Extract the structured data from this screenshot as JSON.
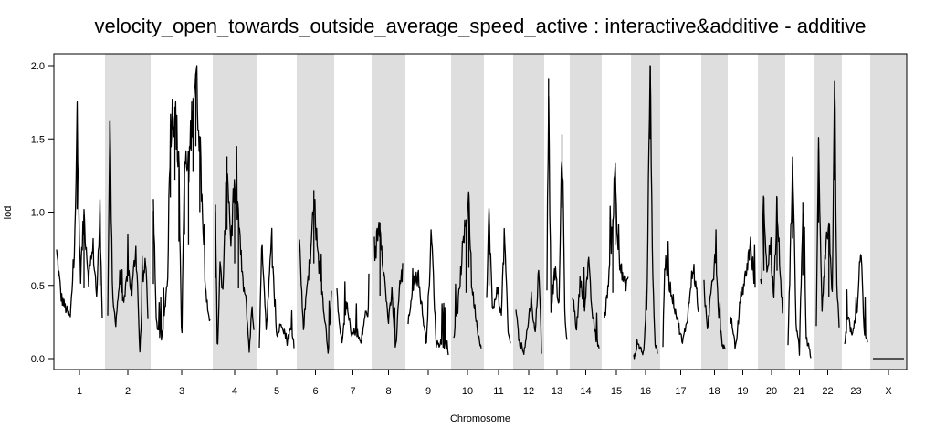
{
  "chart_data": {
    "type": "line",
    "title": "velocity_open_towards_outside_average_speed_active : interactive&additive - additive",
    "xlabel": "Chromosome",
    "ylabel": "lod",
    "ylim": [
      0.0,
      2.0
    ],
    "yticks": [
      "0.0",
      "0.5",
      "1.0",
      "1.5",
      "2.0"
    ],
    "grid": false,
    "chromosomes": [
      {
        "name": "1",
        "shaded": false,
        "peaks": [
          [
            0.0,
            0.72
          ],
          [
            0.1,
            0.42
          ],
          [
            0.2,
            0.34
          ],
          [
            0.3,
            0.28
          ],
          [
            0.38,
            0.7
          ],
          [
            0.45,
            1.52
          ],
          [
            0.52,
            0.55
          ],
          [
            0.6,
            0.98
          ],
          [
            0.7,
            0.55
          ],
          [
            0.8,
            0.75
          ],
          [
            0.88,
            0.42
          ],
          [
            0.95,
            1.0
          ],
          [
            1.0,
            0.3
          ]
        ]
      },
      {
        "name": "2",
        "shaded": true,
        "peaks": [
          [
            0.0,
            0.28
          ],
          [
            0.05,
            1.62
          ],
          [
            0.12,
            0.4
          ],
          [
            0.2,
            0.25
          ],
          [
            0.3,
            0.55
          ],
          [
            0.4,
            0.35
          ],
          [
            0.5,
            0.62
          ],
          [
            0.6,
            0.45
          ],
          [
            0.7,
            0.77
          ],
          [
            0.8,
            0.05
          ],
          [
            0.88,
            0.55
          ],
          [
            0.95,
            0.65
          ],
          [
            1.0,
            0.3
          ]
        ]
      },
      {
        "name": "3",
        "shaded": false,
        "peaks": [
          [
            0.0,
            1.01
          ],
          [
            0.05,
            0.25
          ],
          [
            0.15,
            0.12
          ],
          [
            0.25,
            0.55
          ],
          [
            0.3,
            1.6
          ],
          [
            0.38,
            1.72
          ],
          [
            0.45,
            1.3
          ],
          [
            0.5,
            0.08
          ],
          [
            0.55,
            1.35
          ],
          [
            0.62,
            1.28
          ],
          [
            0.7,
            1.78
          ],
          [
            0.75,
            1.95
          ],
          [
            0.82,
            1.5
          ],
          [
            0.9,
            0.65
          ],
          [
            0.96,
            0.3
          ],
          [
            1.0,
            0.25
          ]
        ]
      },
      {
        "name": "4",
        "shaded": true,
        "peaks": [
          [
            0.0,
            1.05
          ],
          [
            0.05,
            0.03
          ],
          [
            0.12,
            0.62
          ],
          [
            0.2,
            0.45
          ],
          [
            0.3,
            1.38
          ],
          [
            0.4,
            0.8
          ],
          [
            0.5,
            1.15
          ],
          [
            0.6,
            0.98
          ],
          [
            0.7,
            0.55
          ],
          [
            0.8,
            0.38
          ],
          [
            0.88,
            0.05
          ],
          [
            0.95,
            0.35
          ],
          [
            1.0,
            0.2
          ]
        ]
      },
      {
        "name": "5",
        "shaded": false,
        "peaks": [
          [
            0.0,
            0.1
          ],
          [
            0.08,
            0.81
          ],
          [
            0.2,
            0.2
          ],
          [
            0.35,
            0.77
          ],
          [
            0.5,
            0.15
          ],
          [
            0.65,
            0.25
          ],
          [
            0.8,
            0.12
          ],
          [
            0.9,
            0.2
          ],
          [
            1.0,
            0.1
          ]
        ]
      },
      {
        "name": "6",
        "shaded": true,
        "peaks": [
          [
            0.0,
            0.8
          ],
          [
            0.12,
            0.2
          ],
          [
            0.25,
            0.55
          ],
          [
            0.35,
            0.68
          ],
          [
            0.45,
            1.15
          ],
          [
            0.55,
            0.75
          ],
          [
            0.65,
            0.58
          ],
          [
            0.78,
            0.3
          ],
          [
            0.9,
            0.05
          ],
          [
            1.0,
            0.42
          ]
        ]
      },
      {
        "name": "7",
        "shaded": false,
        "peaks": [
          [
            0.0,
            0.44
          ],
          [
            0.15,
            0.1
          ],
          [
            0.3,
            0.38
          ],
          [
            0.45,
            0.15
          ],
          [
            0.6,
            0.2
          ],
          [
            0.75,
            0.1
          ],
          [
            0.88,
            0.3
          ],
          [
            1.0,
            0.32
          ]
        ]
      },
      {
        "name": "8",
        "shaded": true,
        "peaks": [
          [
            0.0,
            0.6
          ],
          [
            0.1,
            0.85
          ],
          [
            0.2,
            0.93
          ],
          [
            0.35,
            0.55
          ],
          [
            0.5,
            0.25
          ],
          [
            0.62,
            0.45
          ],
          [
            0.75,
            0.05
          ],
          [
            0.88,
            0.48
          ],
          [
            1.0,
            0.6
          ]
        ]
      },
      {
        "name": "9",
        "shaded": false,
        "peaks": [
          [
            0.0,
            0.25
          ],
          [
            0.1,
            0.45
          ],
          [
            0.2,
            0.6
          ],
          [
            0.3,
            0.45
          ],
          [
            0.45,
            0.1
          ],
          [
            0.58,
            0.85
          ],
          [
            0.7,
            0.1
          ],
          [
            0.85,
            0.12
          ],
          [
            1.0,
            0.05
          ]
        ]
      },
      {
        "name": "10",
        "shaded": true,
        "peaks": [
          [
            0.0,
            0.15
          ],
          [
            0.15,
            0.35
          ],
          [
            0.3,
            0.7
          ],
          [
            0.45,
            0.95
          ],
          [
            0.55,
            1.12
          ],
          [
            0.65,
            0.5
          ],
          [
            0.8,
            0.3
          ],
          [
            0.9,
            0.15
          ],
          [
            1.0,
            0.1
          ]
        ]
      },
      {
        "name": "11",
        "shaded": false,
        "peaks": [
          [
            0.0,
            0.4
          ],
          [
            0.1,
            1.0
          ],
          [
            0.25,
            0.3
          ],
          [
            0.45,
            0.5
          ],
          [
            0.6,
            0.25
          ],
          [
            0.75,
            0.85
          ],
          [
            0.9,
            0.18
          ],
          [
            1.0,
            0.1
          ]
        ]
      },
      {
        "name": "12",
        "shaded": true,
        "peaks": [
          [
            0.0,
            0.35
          ],
          [
            0.12,
            0.12
          ],
          [
            0.3,
            0.05
          ],
          [
            0.45,
            0.2
          ],
          [
            0.6,
            0.42
          ],
          [
            0.75,
            0.15
          ],
          [
            0.9,
            0.65
          ],
          [
            1.0,
            0.05
          ]
        ]
      },
      {
        "name": "13",
        "shaded": false,
        "peaks": [
          [
            0.0,
            0.25
          ],
          [
            0.08,
            1.91
          ],
          [
            0.2,
            0.35
          ],
          [
            0.4,
            0.6
          ],
          [
            0.6,
            0.35
          ],
          [
            0.75,
            1.53
          ],
          [
            0.9,
            0.25
          ],
          [
            1.0,
            0.1
          ]
        ]
      },
      {
        "name": "14",
        "shaded": true,
        "peaks": [
          [
            0.0,
            0.45
          ],
          [
            0.15,
            0.2
          ],
          [
            0.3,
            0.55
          ],
          [
            0.45,
            0.35
          ],
          [
            0.6,
            0.65
          ],
          [
            0.75,
            0.3
          ],
          [
            0.9,
            0.12
          ],
          [
            1.0,
            0.1
          ]
        ]
      },
      {
        "name": "15",
        "shaded": false,
        "peaks": [
          [
            0.0,
            0.25
          ],
          [
            0.2,
            0.6
          ],
          [
            0.35,
            0.95
          ],
          [
            0.45,
            1.28
          ],
          [
            0.55,
            0.8
          ],
          [
            0.7,
            0.6
          ],
          [
            0.85,
            0.5
          ],
          [
            1.0,
            0.55
          ]
        ]
      },
      {
        "name": "16",
        "shaded": true,
        "peaks": [
          [
            0.0,
            0.0
          ],
          [
            0.2,
            0.1
          ],
          [
            0.4,
            0.02
          ],
          [
            0.55,
            0.35
          ],
          [
            0.7,
            2.0
          ],
          [
            0.8,
            0.6
          ],
          [
            0.9,
            0.1
          ],
          [
            1.0,
            0.05
          ]
        ]
      },
      {
        "name": "17",
        "shaded": false,
        "peaks": [
          [
            0.0,
            0.09
          ],
          [
            0.05,
            0.67
          ],
          [
            0.15,
            0.55
          ],
          [
            0.45,
            0.22
          ],
          [
            0.55,
            0.1
          ],
          [
            0.7,
            0.3
          ],
          [
            0.85,
            0.65
          ],
          [
            1.0,
            0.3
          ]
        ]
      },
      {
        "name": "18",
        "shaded": true,
        "peaks": [
          [
            0.0,
            0.5
          ],
          [
            0.15,
            0.2
          ],
          [
            0.3,
            0.4
          ],
          [
            0.45,
            0.55
          ],
          [
            0.55,
            0.74
          ],
          [
            0.7,
            0.3
          ],
          [
            0.85,
            0.12
          ],
          [
            1.0,
            0.05
          ]
        ]
      },
      {
        "name": "19",
        "shaded": false,
        "peaks": [
          [
            0.0,
            0.3
          ],
          [
            0.2,
            0.05
          ],
          [
            0.4,
            0.4
          ],
          [
            0.6,
            0.55
          ],
          [
            0.8,
            0.78
          ],
          [
            1.0,
            0.5
          ]
        ]
      },
      {
        "name": "20",
        "shaded": true,
        "peaks": [
          [
            0.0,
            0.35
          ],
          [
            0.15,
            1.1
          ],
          [
            0.3,
            0.55
          ],
          [
            0.45,
            0.8
          ],
          [
            0.6,
            0.4
          ],
          [
            0.75,
            1.1
          ],
          [
            0.9,
            0.6
          ],
          [
            1.0,
            0.3
          ]
        ]
      },
      {
        "name": "21",
        "shaded": false,
        "peaks": [
          [
            0.0,
            0.1
          ],
          [
            0.2,
            1.32
          ],
          [
            0.35,
            0.25
          ],
          [
            0.5,
            0.05
          ],
          [
            0.65,
            1.07
          ],
          [
            0.8,
            0.15
          ],
          [
            1.0,
            0.0
          ]
        ]
      },
      {
        "name": "22",
        "shaded": true,
        "peaks": [
          [
            0.0,
            0.25
          ],
          [
            0.1,
            1.43
          ],
          [
            0.25,
            0.35
          ],
          [
            0.4,
            0.75
          ],
          [
            0.55,
            0.92
          ],
          [
            0.7,
            0.45
          ],
          [
            0.8,
            1.72
          ],
          [
            0.9,
            0.5
          ],
          [
            1.0,
            0.2
          ]
        ]
      },
      {
        "name": "23",
        "shaded": false,
        "peaks": [
          [
            0.0,
            0.1
          ],
          [
            0.15,
            0.27
          ],
          [
            0.35,
            0.15
          ],
          [
            0.55,
            0.35
          ],
          [
            0.7,
            0.78
          ],
          [
            0.85,
            0.2
          ],
          [
            1.0,
            0.1
          ]
        ]
      },
      {
        "name": "X",
        "shaded": true,
        "peaks": [
          [
            0.1,
            0.0
          ],
          [
            0.9,
            0.0
          ]
        ]
      }
    ]
  }
}
